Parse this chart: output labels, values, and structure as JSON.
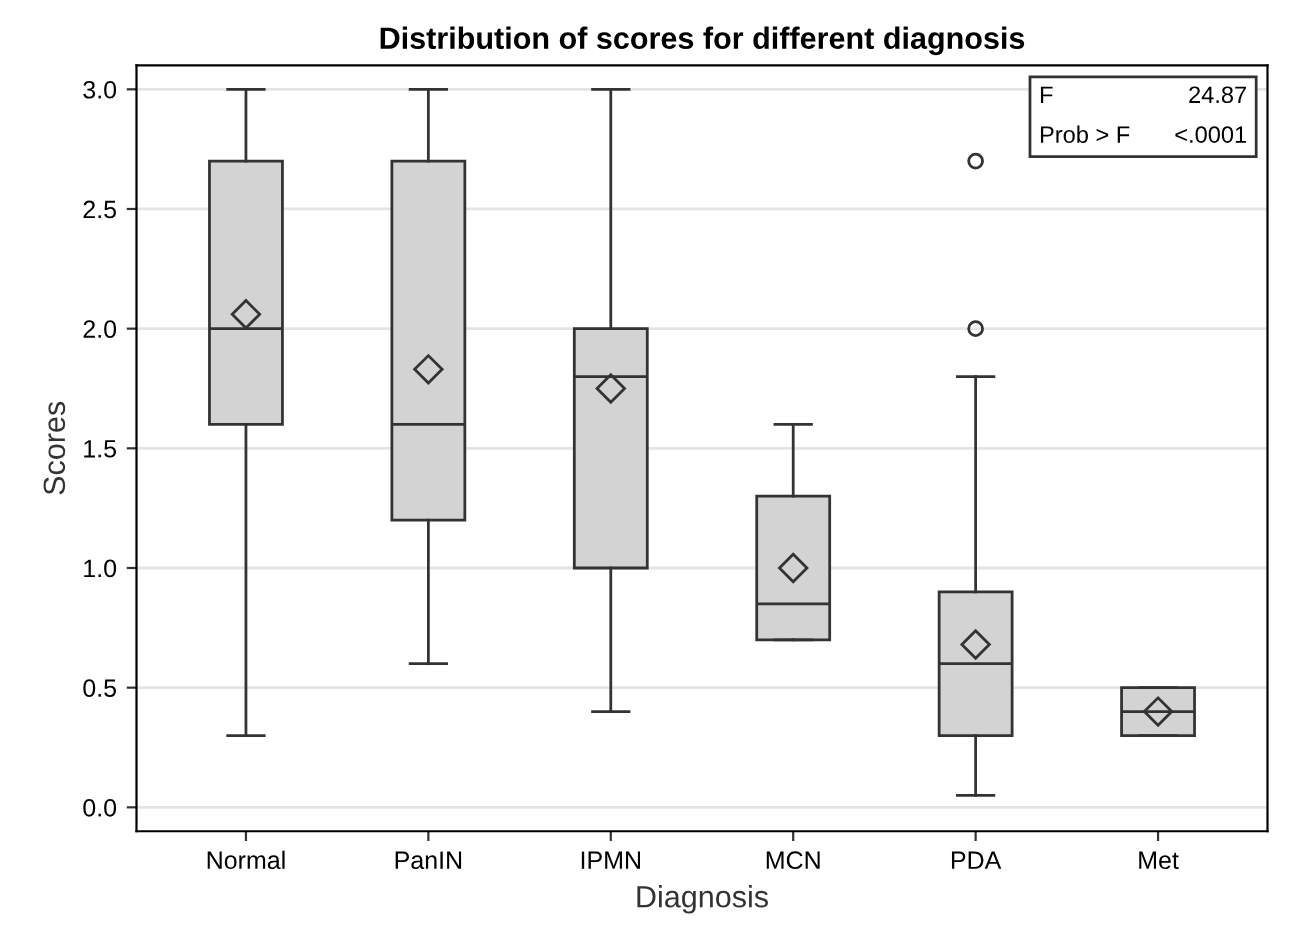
{
  "chart_data": {
    "type": "box",
    "title": "Distribution of scores for different diagnosis",
    "xlabel": "Diagnosis",
    "ylabel": "Scores",
    "categories": [
      "Normal",
      "PanIN",
      "IPMN",
      "MCN",
      "PDA",
      "Met"
    ],
    "boxes": [
      {
        "low": 0.3,
        "q1": 1.6,
        "median": 2.0,
        "q3": 2.7,
        "high": 3.0,
        "mean": 2.06
      },
      {
        "low": 0.6,
        "q1": 1.2,
        "median": 1.6,
        "q3": 2.7,
        "high": 3.0,
        "mean": 1.83
      },
      {
        "low": 0.4,
        "q1": 1.0,
        "median": 1.8,
        "q3": 2.0,
        "high": 3.0,
        "mean": 1.75
      },
      {
        "low": 0.7,
        "q1": 0.7,
        "median": 0.85,
        "q3": 1.3,
        "high": 1.6,
        "mean": 1.0
      },
      {
        "low": 0.05,
        "q1": 0.3,
        "median": 0.6,
        "q3": 0.9,
        "high": 1.8,
        "mean": 0.68,
        "outliers": [
          2.0,
          2.7
        ]
      },
      {
        "low": 0.3,
        "q1": 0.3,
        "median": 0.4,
        "q3": 0.5,
        "high": 0.5,
        "mean": 0.4
      }
    ],
    "color": "#d3d3d3",
    "ylim": [
      -0.1,
      3.1
    ],
    "yticks": [
      {
        "value": 0,
        "label": "0.0"
      },
      0.5,
      {
        "value": 1,
        "label": "1.0"
      },
      1.5,
      {
        "value": 2,
        "label": "2.0"
      },
      2.5,
      {
        "value": 3,
        "label": "3.0"
      }
    ],
    "grid": "y",
    "legend": false,
    "marker": "diamond",
    "annotations": [
      [
        "F",
        "24.87"
      ],
      [
        "Prob > F",
        "<.0001"
      ]
    ]
  }
}
